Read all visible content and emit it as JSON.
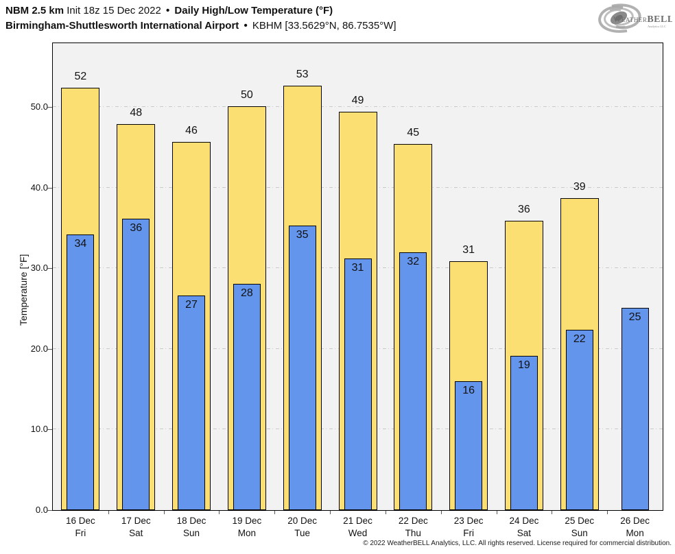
{
  "header": {
    "product": "NBM 2.5 km",
    "init": "Init 18z 15 Dec 2022",
    "separator": "•",
    "metric": "Daily High/Low Temperature (°F)",
    "station": "Birmingham-Shuttlesworth International Airport",
    "station_id": "KBHM [33.5629°N, 86.7535°W]"
  },
  "logo": {
    "name_small_caps": "Weather",
    "name_bold": "BELL",
    "subtext": "Analytics LLC",
    "swirl_color": "#9a9a9a",
    "text_color": "#6e6e6e"
  },
  "chart_data": {
    "type": "bar",
    "title": "NBM 2.5 km Init 18z 15 Dec 2022 • Daily High/Low Temperature (°F)",
    "subtitle": "Birmingham-Shuttlesworth International Airport • KBHM [33.5629°N, 86.7535°W]",
    "ylabel": "Temperature [°F]",
    "xlabel": "",
    "ylim": [
      0,
      57.9
    ],
    "yticks": [
      0,
      10,
      20,
      30,
      40,
      50
    ],
    "ytick_labels": [
      "0.0",
      "10.0",
      "20.0",
      "30.0",
      "40.0",
      "50.0"
    ],
    "grid": "horizontal dash-dot, light gray",
    "legend": "none",
    "plot_bg": "#f2f2f2",
    "categories": [
      {
        "date": "16 Dec",
        "day": "Fri"
      },
      {
        "date": "17 Dec",
        "day": "Sat"
      },
      {
        "date": "18 Dec",
        "day": "Sun"
      },
      {
        "date": "19 Dec",
        "day": "Mon"
      },
      {
        "date": "20 Dec",
        "day": "Tue"
      },
      {
        "date": "21 Dec",
        "day": "Wed"
      },
      {
        "date": "22 Dec",
        "day": "Thu"
      },
      {
        "date": "23 Dec",
        "day": "Fri"
      },
      {
        "date": "24 Dec",
        "day": "Sat"
      },
      {
        "date": "25 Dec",
        "day": "Sun"
      },
      {
        "date": "26 Dec",
        "day": "Mon"
      }
    ],
    "series": [
      {
        "name": "Daily High",
        "color": "#FBDF73",
        "values": [
          52.4,
          47.9,
          45.7,
          50.1,
          52.6,
          49.4,
          45.4,
          30.9,
          35.9,
          38.7,
          null
        ],
        "labels": [
          "52",
          "48",
          "46",
          "50",
          "53",
          "49",
          "45",
          "31",
          "36",
          "39",
          null
        ]
      },
      {
        "name": "Daily Low",
        "color": "#6495EC",
        "values": [
          34.2,
          36.1,
          26.6,
          28.1,
          35.3,
          31.2,
          32.0,
          16.0,
          19.1,
          22.4,
          25.1
        ],
        "labels": [
          "34",
          "36",
          "27",
          "28",
          "35",
          "31",
          "32",
          "16",
          "19",
          "22",
          "25"
        ]
      }
    ]
  },
  "footer": {
    "copyright": "© 2022 WeatherBELL Analytics, LLC. All rights reserved. License required for commercial distribution."
  }
}
